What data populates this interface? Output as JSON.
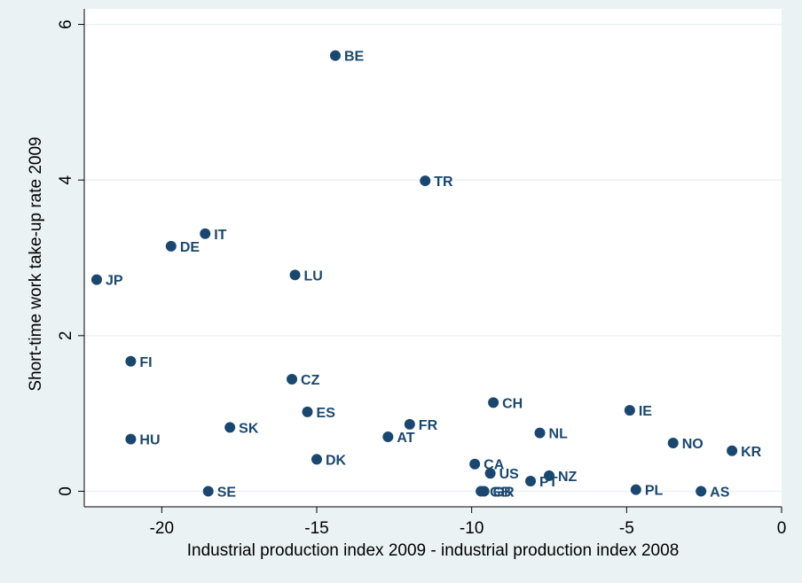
{
  "chart_data": {
    "type": "scatter",
    "title": "",
    "xlabel": "Industrial production index 2009 - industrial production index 2008",
    "ylabel": "Short-time work take-up rate 2009",
    "xlim": [
      -22.5,
      0
    ],
    "ylim": [
      -0.2,
      6.2
    ],
    "xticks": [
      -20,
      -15,
      -10,
      -5,
      0
    ],
    "yticks": [
      0,
      2,
      4,
      6
    ],
    "xtick_labels": [
      "-20",
      "-15",
      "-10",
      "-5",
      "0"
    ],
    "ytick_labels": [
      "0",
      "2",
      "4",
      "6"
    ],
    "grid": true,
    "marker_color": "#1a476f",
    "background_color": "#eaf2f3",
    "plot_background_color": "#ffffff",
    "points": [
      {
        "label": "BE",
        "x": -14.4,
        "y": 5.6
      },
      {
        "label": "TR",
        "x": -11.5,
        "y": 3.99
      },
      {
        "label": "IT",
        "x": -18.6,
        "y": 3.31
      },
      {
        "label": "DE",
        "x": -19.7,
        "y": 3.15
      },
      {
        "label": "LU",
        "x": -15.7,
        "y": 2.78
      },
      {
        "label": "JP",
        "x": -22.1,
        "y": 2.72
      },
      {
        "label": "FI",
        "x": -21.0,
        "y": 1.67
      },
      {
        "label": "CZ",
        "x": -15.8,
        "y": 1.44
      },
      {
        "label": "CH",
        "x": -9.3,
        "y": 1.14
      },
      {
        "label": "IE",
        "x": -4.9,
        "y": 1.04
      },
      {
        "label": "ES",
        "x": -15.3,
        "y": 1.02
      },
      {
        "label": "FR",
        "x": -12.0,
        "y": 0.86
      },
      {
        "label": "SK",
        "x": -17.8,
        "y": 0.82
      },
      {
        "label": "NL",
        "x": -7.8,
        "y": 0.75
      },
      {
        "label": "AT",
        "x": -12.7,
        "y": 0.7
      },
      {
        "label": "HU",
        "x": -21.0,
        "y": 0.67
      },
      {
        "label": "NO",
        "x": -3.5,
        "y": 0.62
      },
      {
        "label": "KR",
        "x": -1.6,
        "y": 0.52
      },
      {
        "label": "DK",
        "x": -15.0,
        "y": 0.41
      },
      {
        "label": "CA",
        "x": -9.9,
        "y": 0.35
      },
      {
        "label": "US",
        "x": -9.4,
        "y": 0.23
      },
      {
        "label": "NZ",
        "x": -7.5,
        "y": 0.2
      },
      {
        "label": "PT",
        "x": -8.1,
        "y": 0.13
      },
      {
        "label": "SE",
        "x": -18.5,
        "y": 0.0
      },
      {
        "label": "GB",
        "x": -9.7,
        "y": 0.0
      },
      {
        "label": "GR",
        "x": -9.6,
        "y": 0.0
      },
      {
        "label": "PL",
        "x": -4.7,
        "y": 0.02
      },
      {
        "label": "AS",
        "x": -2.6,
        "y": 0.0
      }
    ]
  }
}
